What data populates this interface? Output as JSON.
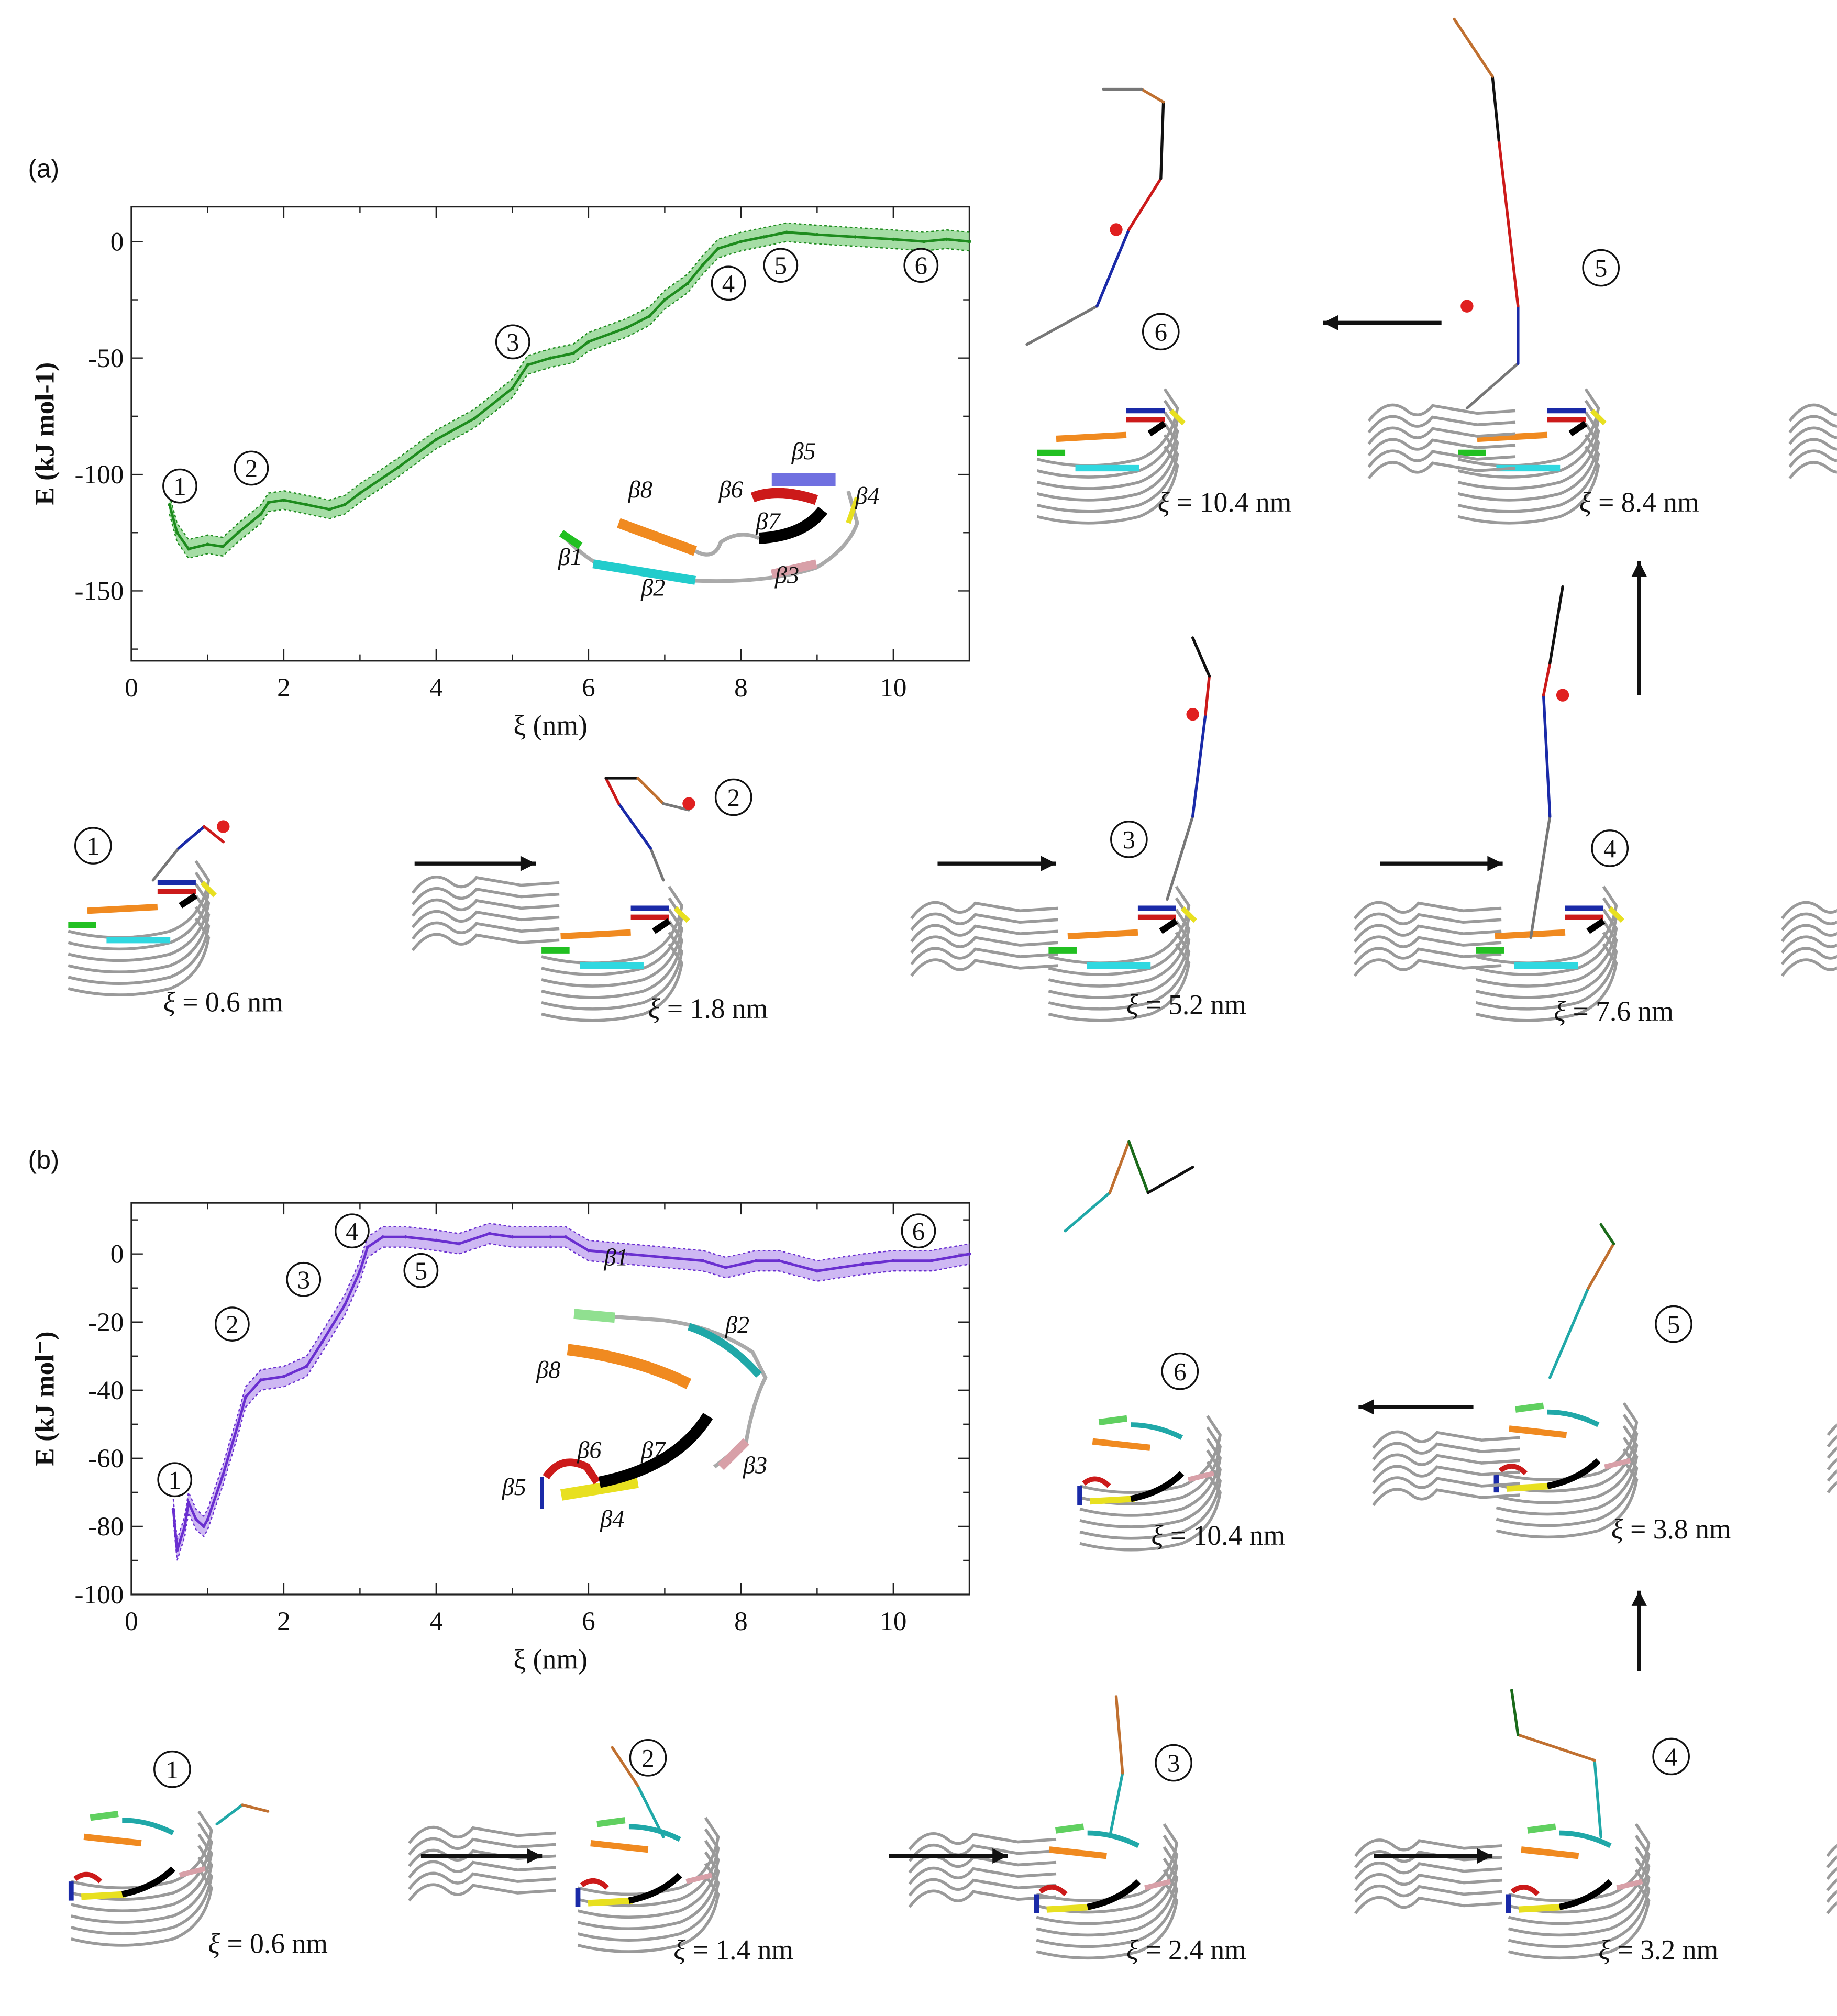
{
  "panels": [
    {
      "label": "(a)",
      "color": "#1e8c1e",
      "band_color": "#7fcf7f",
      "snapshots": [
        {
          "step": "1",
          "xi": "0.6"
        },
        {
          "step": "2",
          "xi": "1.8"
        },
        {
          "step": "3",
          "xi": "5.2"
        },
        {
          "step": "4",
          "xi": "7.6"
        },
        {
          "step": "5",
          "xi": "8.4"
        },
        {
          "step": "6",
          "xi": "10.4"
        }
      ]
    },
    {
      "label": "(b)",
      "color": "#6a2fd0",
      "band_color": "#b99aee",
      "snapshots": [
        {
          "step": "1",
          "xi": "0.6"
        },
        {
          "step": "2",
          "xi": "1.4"
        },
        {
          "step": "3",
          "xi": "2.4"
        },
        {
          "step": "4",
          "xi": "3.2"
        },
        {
          "step": "5",
          "xi": "3.8"
        },
        {
          "step": "6",
          "xi": "10.4"
        }
      ]
    }
  ],
  "snapshot_label_prefix": "ξ = ",
  "snapshot_label_unit": " nm",
  "strand_colors": {
    "β1": "#22c022",
    "β2": "#22cccc",
    "β3": "#d8a0a8",
    "β4": "#e8e020",
    "β5": "#1a2aa8",
    "β6": "#cc1a1a",
    "β7": "#000000",
    "β8": "#f08a20",
    "fibril": "#9a9a9a"
  },
  "chart_data": [
    {
      "type": "line",
      "panel": "(a)",
      "xlabel": "ξ (nm)",
      "ylabel": "E (kJ mol-1)",
      "xlim": [
        0,
        11
      ],
      "ylim": [
        -180,
        15
      ],
      "xticks": [
        0,
        2,
        4,
        6,
        8,
        10
      ],
      "yticks": [
        0,
        -50,
        -100,
        -150
      ],
      "error_bars": true,
      "grid": false,
      "x": [
        0.5,
        0.6,
        0.75,
        1.0,
        1.2,
        1.4,
        1.7,
        1.8,
        2.0,
        2.3,
        2.6,
        2.8,
        3.0,
        3.5,
        4.0,
        4.5,
        5.0,
        5.2,
        5.5,
        5.8,
        6.0,
        6.5,
        6.8,
        7.0,
        7.3,
        7.5,
        7.7,
        8.0,
        8.3,
        8.6,
        9.0,
        9.5,
        10.0,
        10.4,
        10.7,
        11.0
      ],
      "y": [
        -113,
        -125,
        -132,
        -130,
        -131,
        -125,
        -117,
        -112,
        -111,
        -113,
        -115,
        -113,
        -108,
        -97,
        -85,
        -76,
        -63,
        -53,
        -50,
        -48,
        -43,
        -37,
        -32,
        -25,
        -18,
        -10,
        -3,
        0,
        2,
        4,
        3,
        2,
        1,
        0,
        1,
        0
      ],
      "annotations": [
        "1",
        "2",
        "3",
        "4",
        "5",
        "6"
      ],
      "inset_labels": [
        "β8",
        "β6",
        "β5",
        "β4",
        "β7",
        "β1",
        "β2",
        "β3"
      ]
    },
    {
      "type": "line",
      "panel": "(b)",
      "xlabel": "ξ (nm)",
      "ylabel": "E (kJ mol⁻)",
      "xlim": [
        0,
        11
      ],
      "ylim": [
        -100,
        15
      ],
      "xticks": [
        0,
        2,
        4,
        6,
        8,
        10
      ],
      "yticks": [
        0,
        -20,
        -40,
        -60,
        -80,
        -100
      ],
      "error_bars": true,
      "grid": false,
      "x": [
        0.55,
        0.6,
        0.7,
        0.75,
        0.85,
        0.95,
        1.0,
        1.2,
        1.4,
        1.5,
        1.7,
        2.0,
        2.3,
        2.5,
        2.8,
        3.0,
        3.1,
        3.3,
        3.6,
        4.0,
        4.3,
        4.7,
        5.0,
        5.5,
        5.7,
        6.0,
        6.5,
        7.0,
        7.5,
        7.8,
        8.2,
        8.5,
        9.0,
        9.3,
        9.6,
        10.0,
        10.5,
        11.0
      ],
      "y": [
        -75,
        -87,
        -80,
        -73,
        -78,
        -80,
        -78,
        -65,
        -50,
        -42,
        -37,
        -36,
        -33,
        -26,
        -15,
        -5,
        2,
        5,
        5,
        4,
        3,
        6,
        5,
        5,
        5,
        1,
        0,
        -1,
        -2,
        -4,
        -2,
        -2,
        -5,
        -4,
        -3,
        -2,
        -2,
        0
      ],
      "annotations": [
        "1",
        "2",
        "3",
        "4",
        "5",
        "6"
      ],
      "inset_labels": [
        "β1",
        "β2",
        "β8",
        "β6",
        "β7",
        "β5",
        "β3",
        "β4"
      ]
    }
  ]
}
